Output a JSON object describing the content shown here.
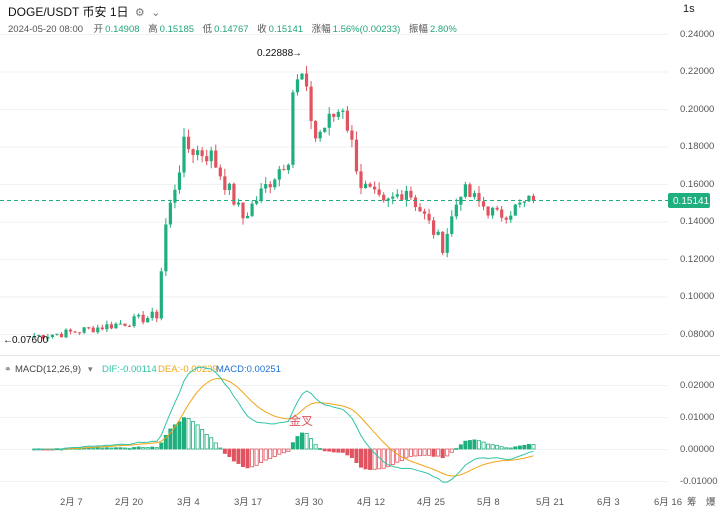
{
  "header": {
    "pair": "DOGE/USDT",
    "exchange": "币安",
    "interval": "1日",
    "settings_icon": "gear-icon",
    "chevron_icon": "chevron-down-icon",
    "resolution_button": "1s"
  },
  "ohlc_bar": {
    "datetime": "2024-05-20 08:00",
    "open_label": "开",
    "open": "0.14908",
    "high_label": "高",
    "high": "0.15185",
    "low_label": "低",
    "low": "0.14767",
    "close_label": "收",
    "close": "0.15141",
    "change_label": "涨幅",
    "change": "1.56%(0.00233)",
    "amplitude_label": "振幅",
    "amplitude": "2.80%"
  },
  "price_axis": {
    "ticks": [
      "0.24000",
      "0.22000",
      "0.20000",
      "0.18000",
      "0.16000",
      "0.14000",
      "0.12000",
      "0.10000",
      "0.08000"
    ],
    "current_price": "0.15141",
    "high_marker": "0.22888",
    "low_marker": "0.07600"
  },
  "macd": {
    "label": "MACD(12,26,9)",
    "dif": "DIF:-0.00114",
    "dea": "DEA:-0.00239",
    "macd": "MACD:0.00251",
    "ticks": [
      "0.02000",
      "0.01000",
      "0.00000",
      "-0.01000"
    ],
    "annotation": "金叉",
    "colors": {
      "dif": "#2fc4a8",
      "dea": "#f2a417",
      "macd": "#1e6fd9"
    }
  },
  "time_axis": [
    "2月 7",
    "2月 20",
    "3月 4",
    "3月 17",
    "3月 30",
    "4月 12",
    "4月 25",
    "5月 8",
    "5月 21",
    "6月 3",
    "6月 16"
  ],
  "time_axis_extra": "筹",
  "time_axis_extra2": "爆",
  "colors": {
    "up": "#1fae7e",
    "down": "#e0535f",
    "accent": "#21a57a"
  },
  "chart_data": {
    "type": "candlestick",
    "symbol": "DOGE/USDT",
    "interval": "1D",
    "price_range": [
      0.065,
      0.245
    ],
    "series_summary": [
      {
        "date": "2024-01-31",
        "close": 0.079
      },
      {
        "date": "2024-02-07",
        "close": 0.0805
      },
      {
        "date": "2024-02-20",
        "close": 0.086
      },
      {
        "date": "2024-02-27",
        "close": 0.09
      },
      {
        "date": "2024-02-29",
        "close": 0.138
      },
      {
        "date": "2024-03-04",
        "close": 0.18
      },
      {
        "date": "2024-03-10",
        "close": 0.175
      },
      {
        "date": "2024-03-17",
        "close": 0.142
      },
      {
        "date": "2024-03-27",
        "close": 0.175
      },
      {
        "date": "2024-03-28",
        "close": 0.21
      },
      {
        "date": "2024-03-30",
        "close": 0.217
      },
      {
        "date": "2024-04-02",
        "close": 0.185
      },
      {
        "date": "2024-04-08",
        "close": 0.202
      },
      {
        "date": "2024-04-12",
        "close": 0.16
      },
      {
        "date": "2024-04-17",
        "close": 0.148
      },
      {
        "date": "2024-04-22",
        "close": 0.158
      },
      {
        "date": "2024-04-30",
        "close": 0.127
      },
      {
        "date": "2024-05-04",
        "close": 0.157
      },
      {
        "date": "2024-05-12",
        "close": 0.143
      },
      {
        "date": "2024-05-20",
        "close": 0.15141
      }
    ],
    "macd_range": [
      -0.011,
      0.024
    ]
  }
}
